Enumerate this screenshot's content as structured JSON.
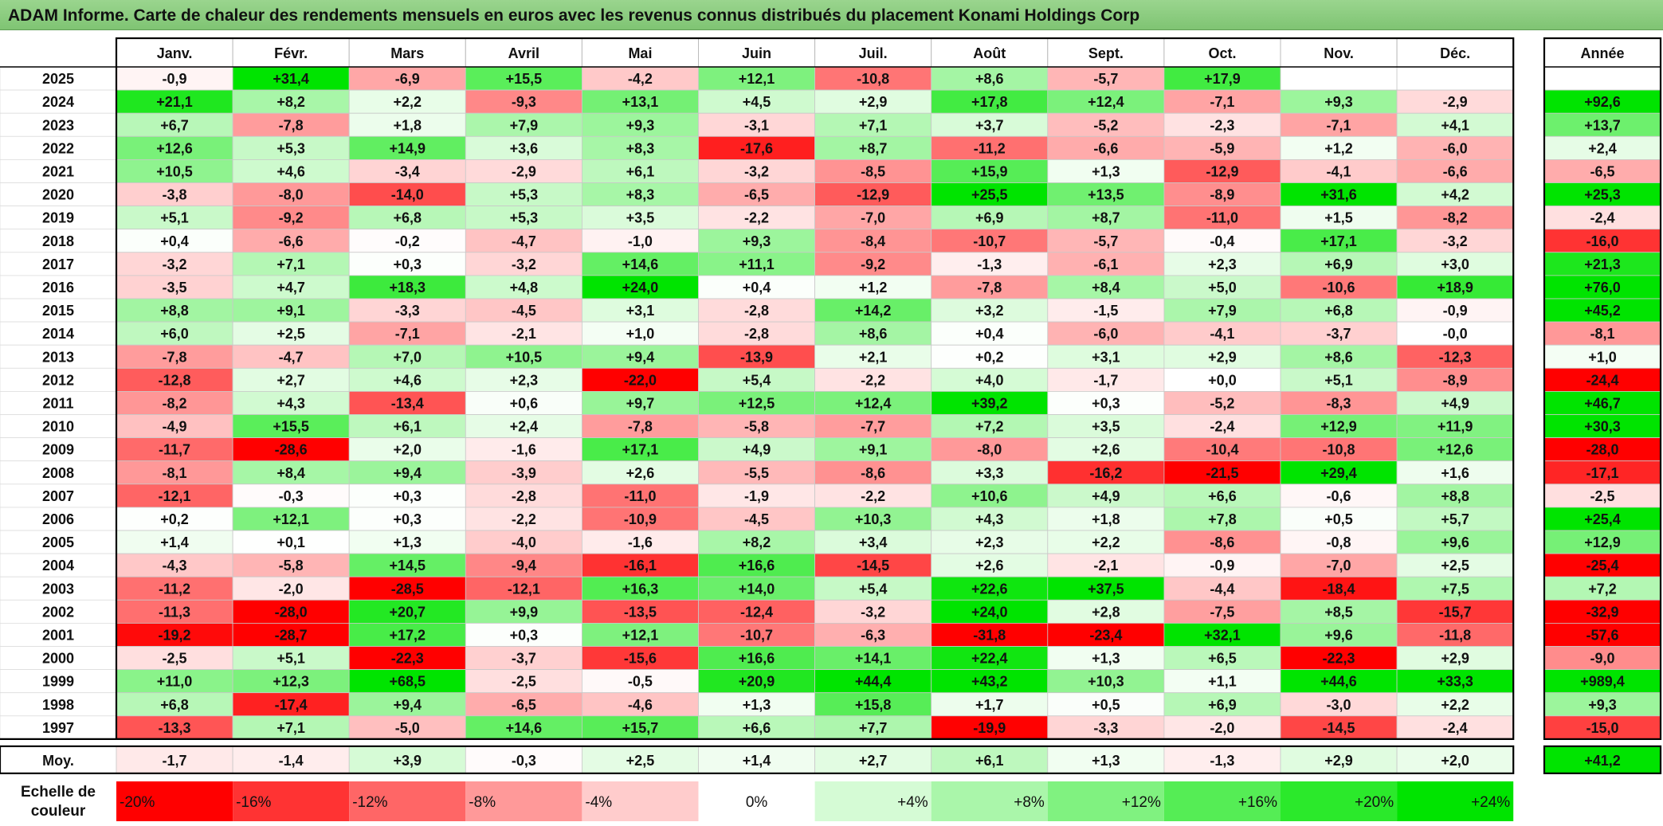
{
  "title": "ADAM Informe. Carte de chaleur des rendements mensuels en euros avec les revenus connus distribués du placement Konami Holdings Corp",
  "chart_data": {
    "type": "heatmap",
    "months": [
      "Janv.",
      "Févr.",
      "Mars",
      "Avril",
      "Mai",
      "Juin",
      "Juil.",
      "Août",
      "Sept.",
      "Oct.",
      "Nov.",
      "Déc."
    ],
    "year_header": "Année",
    "rows": [
      {
        "year": "2025",
        "values": [
          "-0,9",
          "+31,4",
          "-6,9",
          "+15,5",
          "-4,2",
          "+12,1",
          "-10,8",
          "+8,6",
          "-5,7",
          "+17,9",
          "",
          ""
        ],
        "annual": ""
      },
      {
        "year": "2024",
        "values": [
          "+21,1",
          "+8,2",
          "+2,2",
          "-9,3",
          "+13,1",
          "+4,5",
          "+2,9",
          "+17,8",
          "+12,4",
          "-7,1",
          "+9,3",
          "-2,9"
        ],
        "annual": "+92,6"
      },
      {
        "year": "2023",
        "values": [
          "+6,7",
          "-7,8",
          "+1,8",
          "+7,9",
          "+9,3",
          "-3,1",
          "+7,1",
          "+3,7",
          "-5,2",
          "-2,3",
          "-7,1",
          "+4,1"
        ],
        "annual": "+13,7"
      },
      {
        "year": "2022",
        "values": [
          "+12,6",
          "+5,3",
          "+14,9",
          "+3,6",
          "+8,3",
          "-17,6",
          "+8,7",
          "-11,2",
          "-6,6",
          "-5,9",
          "+1,2",
          "-6,0"
        ],
        "annual": "+2,4"
      },
      {
        "year": "2021",
        "values": [
          "+10,5",
          "+4,6",
          "-3,4",
          "-2,9",
          "+6,1",
          "-3,2",
          "-8,5",
          "+15,9",
          "+1,3",
          "-12,9",
          "-4,1",
          "-6,6"
        ],
        "annual": "-6,5"
      },
      {
        "year": "2020",
        "values": [
          "-3,8",
          "-8,0",
          "-14,0",
          "+5,3",
          "+8,3",
          "-6,5",
          "-12,9",
          "+25,5",
          "+13,5",
          "-8,9",
          "+31,6",
          "+4,2"
        ],
        "annual": "+25,3"
      },
      {
        "year": "2019",
        "values": [
          "+5,1",
          "-9,2",
          "+6,8",
          "+5,3",
          "+3,5",
          "-2,2",
          "-7,0",
          "+6,9",
          "+8,7",
          "-11,0",
          "+1,5",
          "-8,2"
        ],
        "annual": "-2,4"
      },
      {
        "year": "2018",
        "values": [
          "+0,4",
          "-6,6",
          "-0,2",
          "-4,7",
          "-1,0",
          "+9,3",
          "-8,4",
          "-10,7",
          "-5,7",
          "-0,4",
          "+17,1",
          "-3,2"
        ],
        "annual": "-16,0"
      },
      {
        "year": "2017",
        "values": [
          "-3,2",
          "+7,1",
          "+0,3",
          "-3,2",
          "+14,6",
          "+11,1",
          "-9,2",
          "-1,3",
          "-6,1",
          "+2,3",
          "+6,9",
          "+3,0"
        ],
        "annual": "+21,3"
      },
      {
        "year": "2016",
        "values": [
          "-3,5",
          "+4,7",
          "+18,3",
          "+4,8",
          "+24,0",
          "+0,4",
          "+1,2",
          "-7,8",
          "+8,4",
          "+5,0",
          "-10,6",
          "+18,9"
        ],
        "annual": "+76,0"
      },
      {
        "year": "2015",
        "values": [
          "+8,8",
          "+9,1",
          "-3,3",
          "-4,5",
          "+3,1",
          "-2,8",
          "+14,2",
          "+3,2",
          "-1,5",
          "+7,9",
          "+6,8",
          "-0,9"
        ],
        "annual": "+45,2"
      },
      {
        "year": "2014",
        "values": [
          "+6,0",
          "+2,5",
          "-7,1",
          "-2,1",
          "+1,0",
          "-2,8",
          "+8,6",
          "+0,4",
          "-6,0",
          "-4,1",
          "-3,7",
          "-0,0"
        ],
        "annual": "-8,1"
      },
      {
        "year": "2013",
        "values": [
          "-7,8",
          "-4,7",
          "+7,0",
          "+10,5",
          "+9,4",
          "-13,9",
          "+2,1",
          "+0,2",
          "+3,1",
          "+2,9",
          "+8,6",
          "-12,3"
        ],
        "annual": "+1,0"
      },
      {
        "year": "2012",
        "values": [
          "-12,8",
          "+2,7",
          "+4,6",
          "+2,3",
          "-22,0",
          "+5,4",
          "-2,2",
          "+4,0",
          "-1,7",
          "+0,0",
          "+5,1",
          "-8,9"
        ],
        "annual": "-24,4"
      },
      {
        "year": "2011",
        "values": [
          "-8,2",
          "+4,3",
          "-13,4",
          "+0,6",
          "+9,7",
          "+12,5",
          "+12,4",
          "+39,2",
          "+0,3",
          "-5,2",
          "-8,3",
          "+4,9"
        ],
        "annual": "+46,7"
      },
      {
        "year": "2010",
        "values": [
          "-4,9",
          "+15,5",
          "+6,1",
          "+2,4",
          "-7,8",
          "-5,8",
          "-7,7",
          "+7,2",
          "+3,5",
          "-2,4",
          "+12,9",
          "+11,9"
        ],
        "annual": "+30,3"
      },
      {
        "year": "2009",
        "values": [
          "-11,7",
          "-28,6",
          "+2,0",
          "-1,6",
          "+17,1",
          "+4,9",
          "+9,1",
          "-8,0",
          "+2,6",
          "-10,4",
          "-10,8",
          "+12,6"
        ],
        "annual": "-28,0"
      },
      {
        "year": "2008",
        "values": [
          "-8,1",
          "+8,4",
          "+9,4",
          "-3,9",
          "+2,6",
          "-5,5",
          "-8,6",
          "+3,3",
          "-16,2",
          "-21,5",
          "+29,4",
          "+1,6"
        ],
        "annual": "-17,1"
      },
      {
        "year": "2007",
        "values": [
          "-12,1",
          "-0,3",
          "+0,3",
          "-2,8",
          "-11,0",
          "-1,9",
          "-2,2",
          "+10,6",
          "+4,9",
          "+6,6",
          "-0,6",
          "+8,8"
        ],
        "annual": "-2,5"
      },
      {
        "year": "2006",
        "values": [
          "+0,2",
          "+12,1",
          "+0,3",
          "-2,2",
          "-10,9",
          "-4,5",
          "+10,3",
          "+4,3",
          "+1,8",
          "+7,8",
          "+0,5",
          "+5,7"
        ],
        "annual": "+25,4"
      },
      {
        "year": "2005",
        "values": [
          "+1,4",
          "+0,1",
          "+1,3",
          "-4,0",
          "-1,6",
          "+8,2",
          "+3,4",
          "+2,3",
          "+2,2",
          "-8,6",
          "-0,8",
          "+9,6"
        ],
        "annual": "+12,9"
      },
      {
        "year": "2004",
        "values": [
          "-4,3",
          "-5,8",
          "+14,5",
          "-9,4",
          "-16,1",
          "+16,6",
          "-14,5",
          "+2,6",
          "-2,1",
          "-0,9",
          "-7,0",
          "+2,5"
        ],
        "annual": "-25,4"
      },
      {
        "year": "2003",
        "values": [
          "-11,2",
          "-2,0",
          "-28,5",
          "-12,1",
          "+16,3",
          "+14,0",
          "+5,4",
          "+22,6",
          "+37,5",
          "-4,4",
          "-18,4",
          "+7,5"
        ],
        "annual": "+7,2"
      },
      {
        "year": "2002",
        "values": [
          "-11,3",
          "-28,0",
          "+20,7",
          "+9,9",
          "-13,5",
          "-12,4",
          "-3,2",
          "+24,0",
          "+2,8",
          "-7,5",
          "+8,5",
          "-15,7"
        ],
        "annual": "-32,9"
      },
      {
        "year": "2001",
        "values": [
          "-19,2",
          "-28,7",
          "+17,2",
          "+0,3",
          "+12,1",
          "-10,7",
          "-6,3",
          "-31,8",
          "-23,4",
          "+32,1",
          "+9,6",
          "-11,8"
        ],
        "annual": "-57,6"
      },
      {
        "year": "2000",
        "values": [
          "-2,5",
          "+5,1",
          "-22,3",
          "-3,7",
          "-15,6",
          "+16,6",
          "+14,1",
          "+22,4",
          "+1,3",
          "+6,5",
          "-22,3",
          "+2,9"
        ],
        "annual": "-9,0"
      },
      {
        "year": "1999",
        "values": [
          "+11,0",
          "+12,3",
          "+68,5",
          "-2,5",
          "-0,5",
          "+20,9",
          "+44,4",
          "+43,2",
          "+10,3",
          "+1,1",
          "+44,6",
          "+33,3"
        ],
        "annual": "+989,4"
      },
      {
        "year": "1998",
        "values": [
          "+6,8",
          "-17,4",
          "+9,4",
          "-6,5",
          "-4,6",
          "+1,3",
          "+15,8",
          "+1,7",
          "+0,5",
          "+6,9",
          "-3,0",
          "+2,2"
        ],
        "annual": "+9,3"
      },
      {
        "year": "1997",
        "values": [
          "-13,3",
          "+7,1",
          "-5,0",
          "+14,6",
          "+15,7",
          "+6,6",
          "+7,7",
          "-19,9",
          "-3,3",
          "-2,0",
          "-14,5",
          "-2,4"
        ],
        "annual": "-15,0"
      }
    ],
    "average": {
      "label": "Moy.",
      "values": [
        "-1,7",
        "-1,4",
        "+3,9",
        "-0,3",
        "+2,5",
        "+1,4",
        "+2,7",
        "+6,1",
        "+1,3",
        "-1,3",
        "+2,9",
        "+2,0"
      ],
      "annual": "+41,2"
    },
    "scale": {
      "label_line1": "Echelle de",
      "label_line2": "couleur",
      "steps": [
        "-20%",
        "-16%",
        "-12%",
        "-8%",
        "-4%",
        "0%",
        "+4%",
        "+8%",
        "+12%",
        "+16%",
        "+20%",
        "+24%"
      ],
      "step_values": [
        -20,
        -16,
        -12,
        -8,
        -4,
        0,
        4,
        8,
        12,
        16,
        20,
        24
      ]
    },
    "colors": {
      "negative_max": "#ff0000",
      "neutral": "#ffffff",
      "positive_max": "#00e000",
      "title_bar": "#8fcd83"
    }
  }
}
